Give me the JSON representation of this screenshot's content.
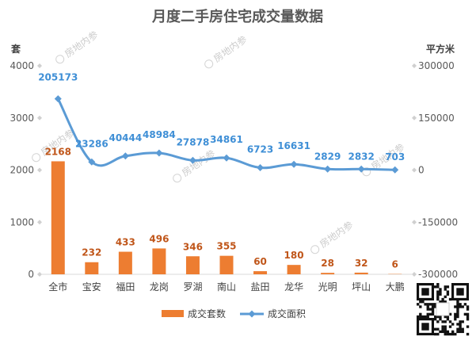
{
  "chart_data": {
    "type": "bar+line",
    "title": "月度二手房住宅成交量数据",
    "categories": [
      "全市",
      "宝安",
      "福田",
      "龙岗",
      "罗湖",
      "南山",
      "盐田",
      "龙华",
      "光明",
      "坪山",
      "大鹏"
    ],
    "series": [
      {
        "name": "成交套数",
        "type": "bar",
        "axis": "left",
        "color": "#ed7d31",
        "values": [
          2168,
          232,
          433,
          496,
          346,
          355,
          60,
          180,
          28,
          32,
          6
        ]
      },
      {
        "name": "成交面积",
        "type": "line",
        "axis": "right",
        "color": "#5b9bd5",
        "values": [
          205173,
          23286,
          40444,
          48984,
          27878,
          34861,
          6723,
          16631,
          2829,
          2832,
          703
        ]
      }
    ],
    "ylabel_left": "套",
    "ylabel_right": "平方米",
    "ylim_left": [
      0,
      4000
    ],
    "yticks_left": [
      0,
      1000,
      2000,
      3000,
      4000
    ],
    "ylim_right": [
      -300000,
      300000
    ],
    "yticks_right": [
      -300000,
      -150000,
      0,
      150000,
      300000
    ],
    "grid": false,
    "legend_position": "bottom"
  },
  "watermark": {
    "text": "房地内参"
  },
  "qr_code": {
    "icon": "qr-code-icon"
  }
}
